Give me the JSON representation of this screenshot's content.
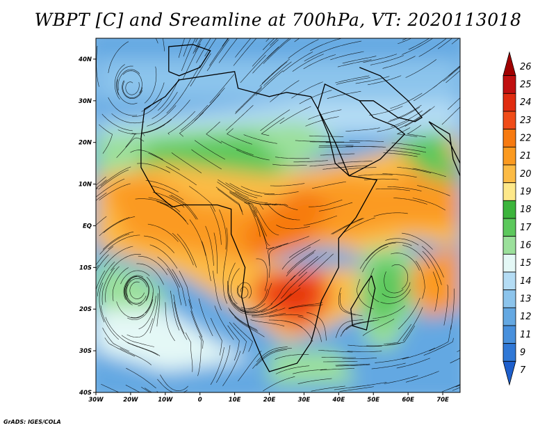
{
  "title": "WBPT [C] and Sreamline at 700hPa, VT: 2020113018",
  "credit": "GrADS: IGES/COLA",
  "map": {
    "lon_range": [
      -30,
      75
    ],
    "lat_range": [
      -40,
      45
    ],
    "lat_labels": [
      {
        "value": 40,
        "text": "40N"
      },
      {
        "value": 30,
        "text": "30N"
      },
      {
        "value": 20,
        "text": "20N"
      },
      {
        "value": 10,
        "text": "10N"
      },
      {
        "value": 0,
        "text": "EQ"
      },
      {
        "value": -10,
        "text": "10S"
      },
      {
        "value": -20,
        "text": "20S"
      },
      {
        "value": -30,
        "text": "30S"
      },
      {
        "value": -40,
        "text": "40S"
      }
    ],
    "lon_labels": [
      {
        "value": -30,
        "text": "30W"
      },
      {
        "value": -20,
        "text": "20W"
      },
      {
        "value": -10,
        "text": "10W"
      },
      {
        "value": 0,
        "text": "0"
      },
      {
        "value": 10,
        "text": "10E"
      },
      {
        "value": 20,
        "text": "20E"
      },
      {
        "value": 30,
        "text": "30E"
      },
      {
        "value": 40,
        "text": "40E"
      },
      {
        "value": 50,
        "text": "50E"
      },
      {
        "value": 60,
        "text": "60E"
      },
      {
        "value": 70,
        "text": "70E"
      }
    ]
  },
  "colorbar": {
    "levels": [
      {
        "label": "26",
        "color": "#a00000"
      },
      {
        "label": "25",
        "color": "#c01010"
      },
      {
        "label": "24",
        "color": "#e02c10"
      },
      {
        "label": "23",
        "color": "#f04c18"
      },
      {
        "label": "22",
        "color": "#f77a10"
      },
      {
        "label": "21",
        "color": "#fb9a20"
      },
      {
        "label": "20",
        "color": "#fcbb45"
      },
      {
        "label": "19",
        "color": "#fde88a"
      },
      {
        "label": "18",
        "color": "#3cb43c"
      },
      {
        "label": "17",
        "color": "#5cc85c"
      },
      {
        "label": "16",
        "color": "#9be09b"
      },
      {
        "label": "15",
        "color": "#e4f8f6"
      },
      {
        "label": "14",
        "color": "#b4dcf4"
      },
      {
        "label": "13",
        "color": "#8cc4ec"
      },
      {
        "label": "12",
        "color": "#64a8e2"
      },
      {
        "label": "11",
        "color": "#4890dc"
      },
      {
        "label": "9",
        "color": "#3078d6"
      },
      {
        "label": "7",
        "color": "#1e5fcc"
      }
    ]
  }
}
